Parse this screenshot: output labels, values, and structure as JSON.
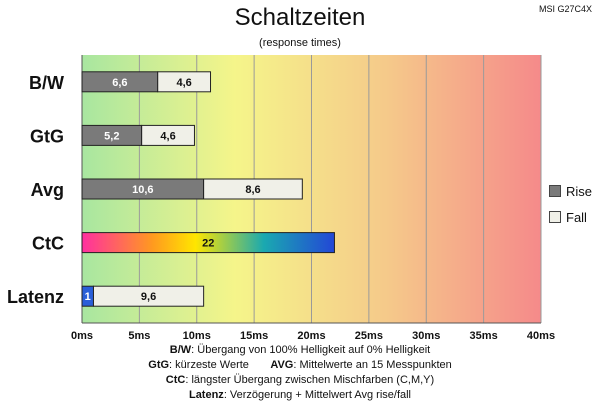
{
  "header": {
    "title": "Schaltzeiten",
    "subtitle": "(response times)",
    "model": "MSI G27C4X"
  },
  "legend": {
    "rise_label": "Rise",
    "fall_label": "Fall",
    "rise_color": "#7a7a7a",
    "fall_color": "#f0f0e8"
  },
  "footnotes": {
    "line1": {
      "key": "B/W",
      "text": ":  Übergang von 100% Helligkeit auf 0% Helligkeit"
    },
    "line2": {
      "key1": "GtG",
      "text1": ": kürzeste  Werte",
      "key2": "AVG",
      "text2": ": Mittelwerte  an 15 Messpunkten"
    },
    "line3": {
      "key": "CtC",
      "text": ": längster Übergang  zwischen Mischfarben (C,M,Y)"
    },
    "line4": {
      "key": "Latenz",
      "text": ": Verzögerung  + Mittelwert  Avg rise/fall"
    }
  },
  "chart_data": {
    "type": "bar",
    "orientation": "horizontal",
    "stacked": true,
    "title": "Schaltzeiten",
    "subtitle": "(response times)",
    "categories": [
      "B/W",
      "GtG",
      "Avg",
      "CtC",
      "Latenz"
    ],
    "x_ticks": [
      "0ms",
      "5ms",
      "10ms",
      "15ms",
      "20ms",
      "25ms",
      "30ms",
      "35ms",
      "40ms"
    ],
    "xlim": [
      0,
      40
    ],
    "grid": true,
    "legend_position": "right",
    "background_gradient": [
      "#a8e6a0",
      "#f5f58a",
      "#f5c98a",
      "#f58a8a"
    ],
    "bars": [
      {
        "category": "B/W",
        "segments": [
          {
            "series": "Rise",
            "value": 6.6,
            "label": "6,6"
          },
          {
            "series": "Fall",
            "value": 4.6,
            "label": "4,6"
          }
        ]
      },
      {
        "category": "GtG",
        "segments": [
          {
            "series": "Rise",
            "value": 5.2,
            "label": "5,2"
          },
          {
            "series": "Fall",
            "value": 4.6,
            "label": "4,6"
          }
        ]
      },
      {
        "category": "Avg",
        "segments": [
          {
            "series": "Rise",
            "value": 10.6,
            "label": "10,6"
          },
          {
            "series": "Fall",
            "value": 8.6,
            "label": "8,6"
          }
        ]
      },
      {
        "category": "CtC",
        "segments": [
          {
            "series": "CtC",
            "value": 22,
            "label": "22",
            "fill": "rainbow"
          }
        ]
      },
      {
        "category": "Latenz",
        "segments": [
          {
            "series": "Delay",
            "value": 1,
            "label": "1",
            "color": "#2a5fd8"
          },
          {
            "series": "Fall",
            "value": 9.6,
            "label": "9,6"
          }
        ]
      }
    ]
  }
}
